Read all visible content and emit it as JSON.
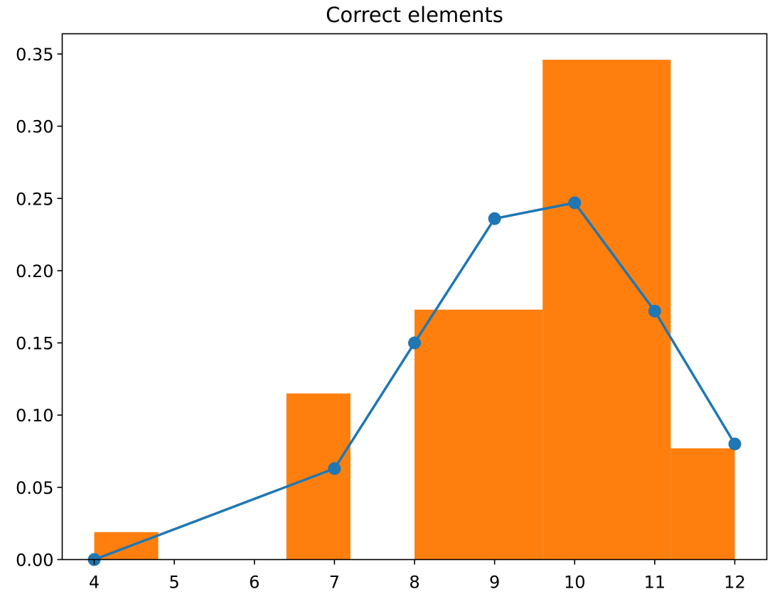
{
  "chart_data": {
    "type": "bar",
    "title": "Correct elements",
    "xlabel": "",
    "ylabel": "",
    "xlim": [
      3.6,
      12.4
    ],
    "ylim": [
      0,
      0.364
    ],
    "x_ticks": [
      "4",
      "5",
      "6",
      "7",
      "8",
      "9",
      "10",
      "11",
      "12"
    ],
    "y_ticks": [
      "0.00",
      "0.05",
      "0.10",
      "0.15",
      "0.20",
      "0.25",
      "0.30",
      "0.35"
    ],
    "grid": false,
    "legend": "none",
    "series": [
      {
        "type": "histogram",
        "color": "#ff7f0e",
        "bins": [
          {
            "x0": 4.0,
            "x1": 4.8,
            "value": 0.019
          },
          {
            "x0": 6.4,
            "x1": 7.2,
            "value": 0.115
          },
          {
            "x0": 8.0,
            "x1": 9.6,
            "value": 0.173
          },
          {
            "x0": 9.6,
            "x1": 11.2,
            "value": 0.346
          },
          {
            "x0": 11.2,
            "x1": 12.0,
            "value": 0.077
          }
        ]
      },
      {
        "type": "line",
        "color": "#1f77b4",
        "marker": "circle",
        "x": [
          4,
          7,
          8,
          9,
          10,
          11,
          12
        ],
        "y": [
          0.0,
          0.063,
          0.15,
          0.236,
          0.247,
          0.172,
          0.08
        ]
      }
    ]
  }
}
